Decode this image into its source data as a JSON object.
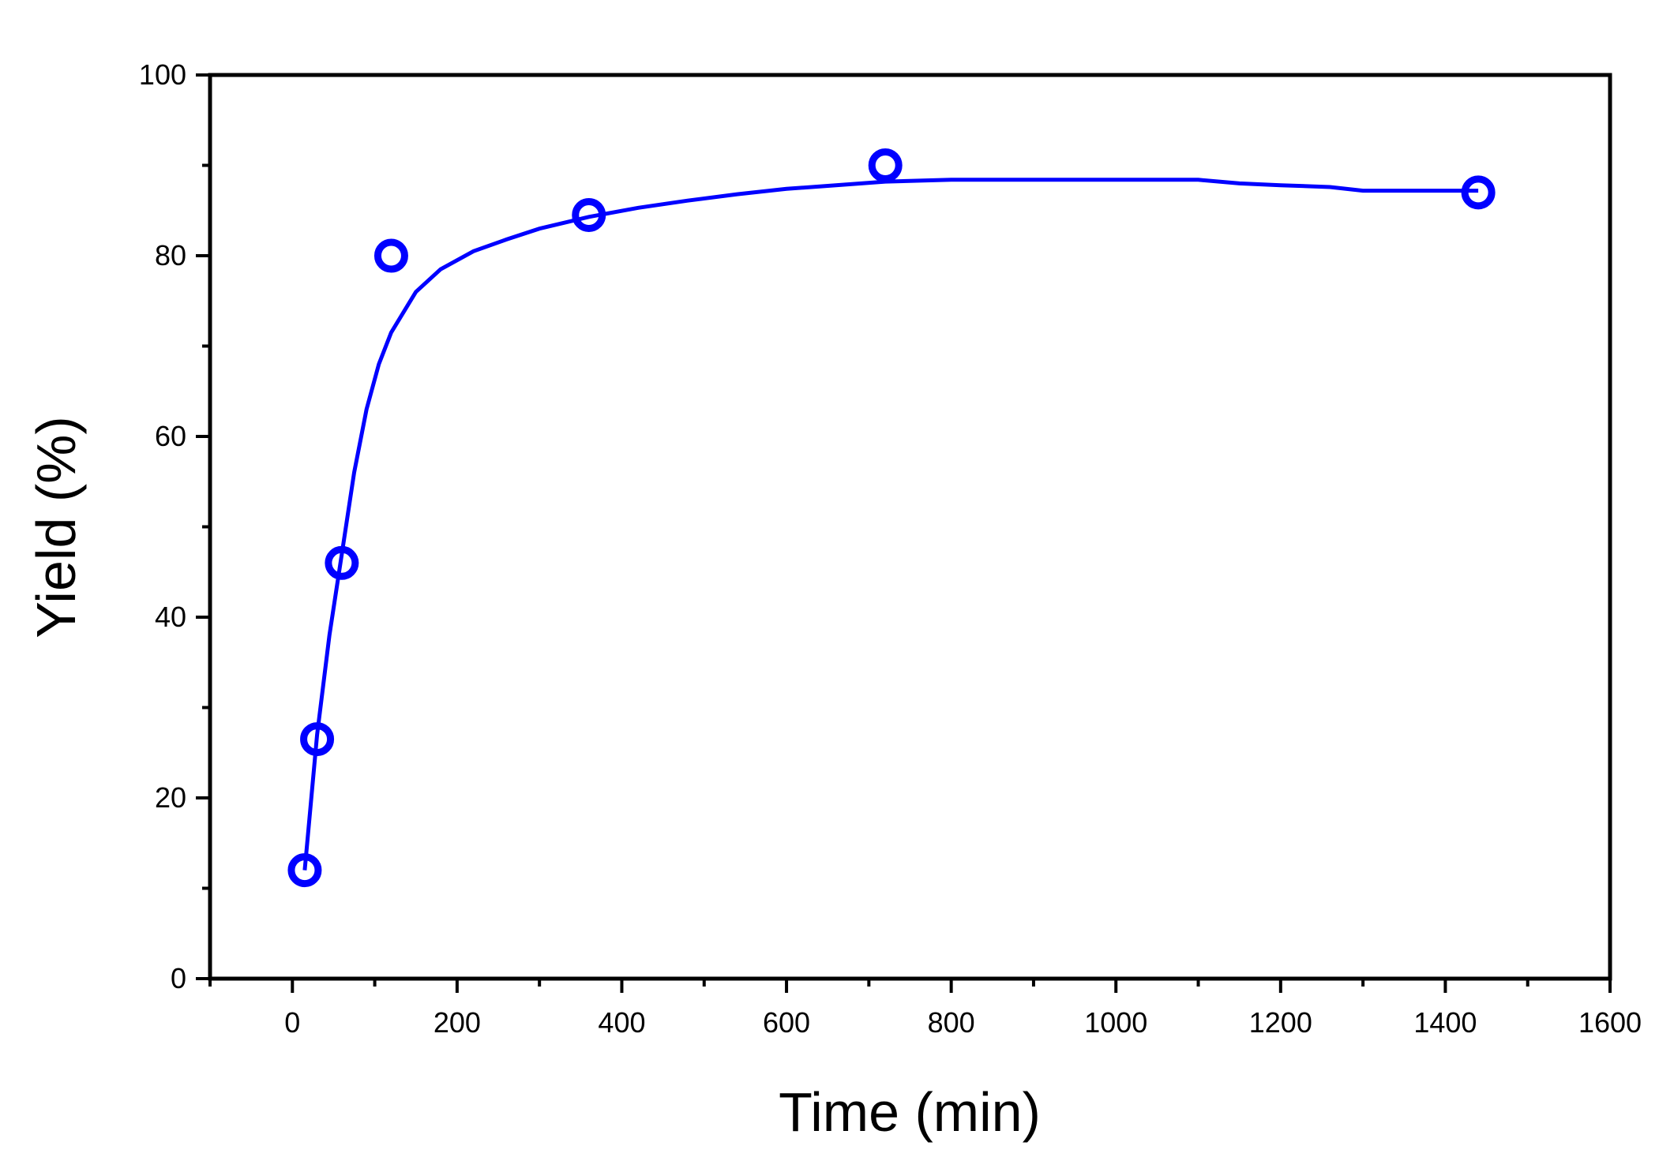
{
  "chart_data": {
    "type": "scatter",
    "title": "",
    "xlabel": "Time (min)",
    "ylabel": "Yield (%)",
    "xlim": [
      -100,
      1600
    ],
    "ylim": [
      0,
      100
    ],
    "x_ticks": [
      0,
      200,
      400,
      600,
      800,
      1000,
      1200,
      1400,
      1600
    ],
    "y_ticks": [
      0,
      20,
      40,
      60,
      80,
      100
    ],
    "x_tick_labels": [
      "0",
      "200",
      "400",
      "600",
      "800",
      "1000",
      "1200",
      "1400",
      "1600"
    ],
    "y_tick_labels": [
      "0",
      "20",
      "40",
      "60",
      "80",
      "100"
    ],
    "grid": false,
    "legend": "none",
    "series": [
      {
        "color": "#0000ff",
        "marker": "circle",
        "x": [
          15,
          30,
          60,
          120,
          360,
          720,
          1440
        ],
        "y": [
          12,
          26.5,
          46,
          80,
          84.5,
          90,
          87
        ]
      }
    ],
    "fit_curve": {
      "color": "#0000ff",
      "x": [
        15,
        30,
        45,
        60,
        75,
        90,
        105,
        120,
        150,
        180,
        220,
        260,
        300,
        360,
        420,
        480,
        540,
        600,
        660,
        720,
        800,
        900,
        1000,
        1100,
        1150,
        1200,
        1260,
        1300,
        1440
      ],
      "y": [
        12,
        27,
        38,
        47,
        56,
        63,
        68,
        71.5,
        76,
        78.5,
        80.5,
        81.8,
        83,
        84.3,
        85.3,
        86.1,
        86.8,
        87.4,
        87.8,
        88.2,
        88.4,
        88.4,
        88.4,
        88.4,
        88,
        87.8,
        87.6,
        87.2,
        87.2
      ]
    }
  }
}
